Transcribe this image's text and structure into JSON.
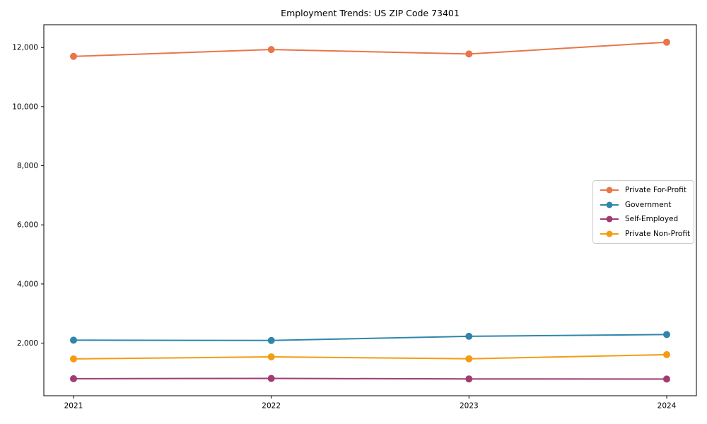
{
  "chart_data": {
    "type": "line",
    "title": "Employment Trends: US ZIP Code 73401",
    "xlabel": "",
    "ylabel": "",
    "x": [
      2021,
      2022,
      2023,
      2024
    ],
    "xtick_labels": [
      "2021",
      "2022",
      "2023",
      "2024"
    ],
    "ytick_values": [
      2000,
      4000,
      6000,
      8000,
      10000,
      12000
    ],
    "ytick_labels": [
      "2,000",
      "4,000",
      "6,000",
      "8,000",
      "10,000",
      "12,000"
    ],
    "xlim": [
      2020.85,
      2024.15
    ],
    "ylim": [
      220,
      12770
    ],
    "grid": false,
    "legend_position": "center-right",
    "marker": "circle",
    "axis_color": "#000000",
    "series": [
      {
        "name": "Private For-Profit",
        "color": "#E8764B",
        "values": [
          11700,
          11930,
          11780,
          12180
        ]
      },
      {
        "name": "Government",
        "color": "#2E86AB",
        "values": [
          2100,
          2090,
          2230,
          2290
        ]
      },
      {
        "name": "Self-Employed",
        "color": "#A23B72",
        "values": [
          795,
          805,
          790,
          785
        ]
      },
      {
        "name": "Private Non-Profit",
        "color": "#F39C12",
        "values": [
          1465,
          1535,
          1470,
          1610
        ]
      }
    ]
  }
}
